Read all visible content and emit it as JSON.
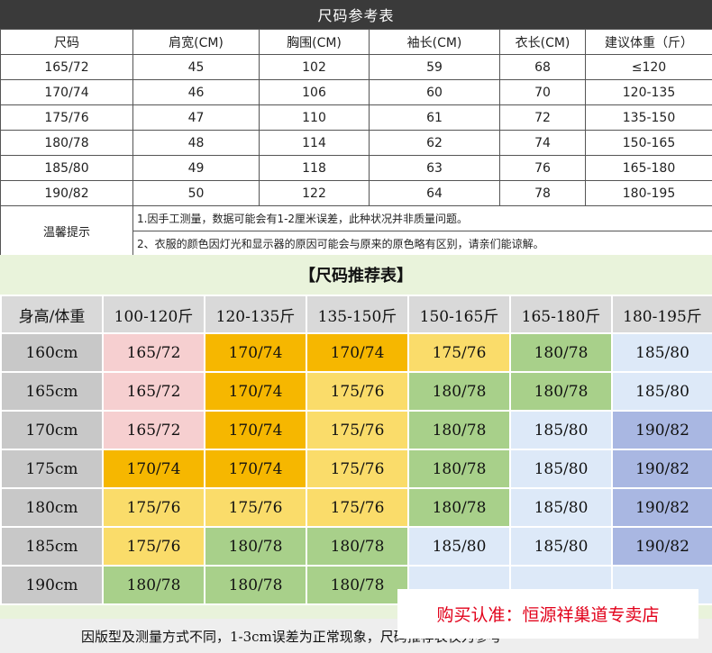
{
  "size_table": {
    "title": "尺码参考表",
    "headers": [
      "尺码",
      "肩宽(CM)",
      "胸围(CM)",
      "袖长(CM)",
      "衣长(CM)",
      "建议体重（斤）"
    ],
    "rows": [
      [
        "165/72",
        "45",
        "102",
        "59",
        "68",
        "≤120"
      ],
      [
        "170/74",
        "46",
        "106",
        "60",
        "70",
        "120-135"
      ],
      [
        "175/76",
        "47",
        "110",
        "61",
        "72",
        "135-150"
      ],
      [
        "180/78",
        "48",
        "114",
        "62",
        "74",
        "150-165"
      ],
      [
        "185/80",
        "49",
        "118",
        "63",
        "76",
        "165-180"
      ],
      [
        "190/82",
        "50",
        "122",
        "64",
        "78",
        "180-195"
      ]
    ],
    "tip_label": "温馨提示",
    "notes": [
      "1.因手工测量，数据可能会有1-2厘米误差，此种状况并非质量问题。",
      "2、衣服的颜色因灯光和显示器的原因可能会与原来的原色略有区别，请亲们能谅解。"
    ]
  },
  "recommend": {
    "title": "【尺码推荐表】",
    "corner": "身高/体重",
    "weights": [
      "100-120斤",
      "120-135斤",
      "135-150斤",
      "150-165斤",
      "165-180斤",
      "180-195斤"
    ],
    "rows": [
      {
        "height": "160cm",
        "cells": [
          "165/72",
          "170/74",
          "170/74",
          "175/76",
          "180/78",
          "185/80"
        ]
      },
      {
        "height": "165cm",
        "cells": [
          "165/72",
          "170/74",
          "175/76",
          "180/78",
          "180/78",
          "185/80"
        ]
      },
      {
        "height": "170cm",
        "cells": [
          "165/72",
          "170/74",
          "175/76",
          "180/78",
          "185/80",
          "190/82"
        ]
      },
      {
        "height": "175cm",
        "cells": [
          "170/74",
          "170/74",
          "175/76",
          "180/78",
          "185/80",
          "190/82"
        ]
      },
      {
        "height": "180cm",
        "cells": [
          "175/76",
          "175/76",
          "175/76",
          "180/78",
          "185/80",
          "190/82"
        ]
      },
      {
        "height": "185cm",
        "cells": [
          "175/76",
          "180/78",
          "180/78",
          "185/80",
          "185/80",
          "190/82"
        ]
      },
      {
        "height": "190cm",
        "cells": [
          "180/78",
          "180/78",
          "180/78",
          "",
          "",
          ""
        ]
      }
    ],
    "size_colors": {
      "165/72": "#f6cfd0",
      "170/74": "#f6b700",
      "175/76": "#fadc6a",
      "180/78": "#a8d08a",
      "185/80": "#dde9f8",
      "190/82": "#a9b7e2"
    },
    "footer": "因版型及测量方式不同，1-3cm误差为正常现象，尺码推荐表仅为参考"
  },
  "watermark": "购买认准：恒源祥巢道专卖店"
}
